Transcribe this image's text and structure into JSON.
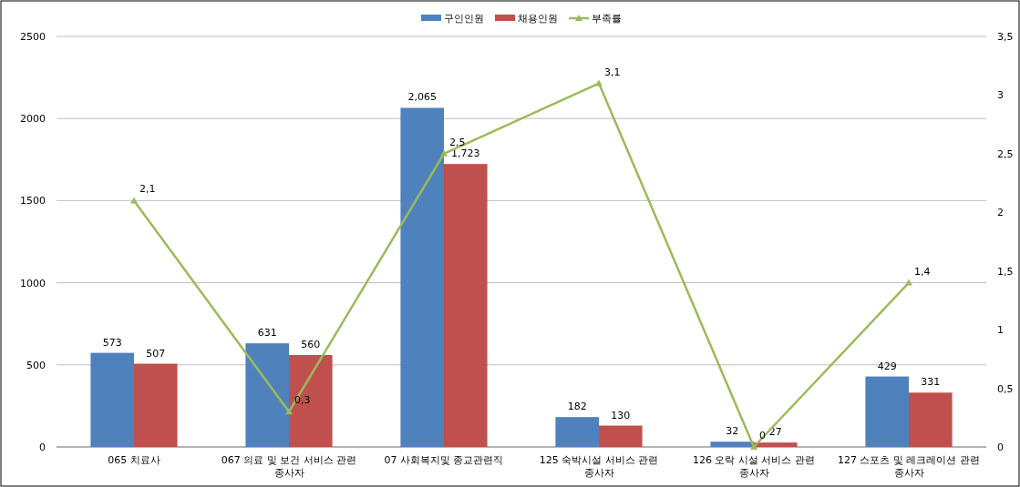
{
  "chart_data": {
    "type": "bar",
    "categories": [
      "065 치료사",
      "067 의료 및 보건 서비스 관련 종사자",
      "07 사회복지및 종교관련직",
      "125 숙박시설 서비스 관련 종사자",
      "126 오락 시설 서비스 관련 종사자",
      "127 스포츠 및 레크레이션 관련 종사자"
    ],
    "series": [
      {
        "name": "구인인원",
        "color": "#4f81bd",
        "values": [
          573,
          631,
          2065,
          182,
          32,
          429
        ],
        "value_labels": [
          "573",
          "631",
          "2,065",
          "182",
          "32",
          "429"
        ]
      },
      {
        "name": "채용인원",
        "color": "#c0504d",
        "values": [
          507,
          560,
          1723,
          130,
          27,
          331
        ],
        "value_labels": [
          "507",
          "560",
          "1,723",
          "130",
          "27",
          "331"
        ]
      },
      {
        "name": "부족률",
        "type": "line",
        "axis": "y2",
        "color": "#9bbb59",
        "values": [
          2.1,
          0.3,
          2.5,
          3.1,
          0,
          1.4
        ],
        "value_labels": [
          "2,1",
          "0,3",
          "2,5",
          "3,1",
          "0",
          "1,4"
        ]
      }
    ],
    "ylim": [
      0,
      2500
    ],
    "yticks": [
      0,
      500,
      1000,
      1500,
      2000,
      2500
    ],
    "y2lim": [
      0,
      3.5
    ],
    "y2ticks": [
      0,
      {
        "value": 0.5,
        "label": "0,5"
      },
      1,
      {
        "value": 1.5,
        "label": "1,5"
      },
      2,
      {
        "value": 2.5,
        "label": "2,5"
      },
      3,
      {
        "value": 3.5,
        "label": "3,5"
      }
    ],
    "grid": "y",
    "legend": "top",
    "marker": "triangle",
    "line_style": "solid"
  }
}
